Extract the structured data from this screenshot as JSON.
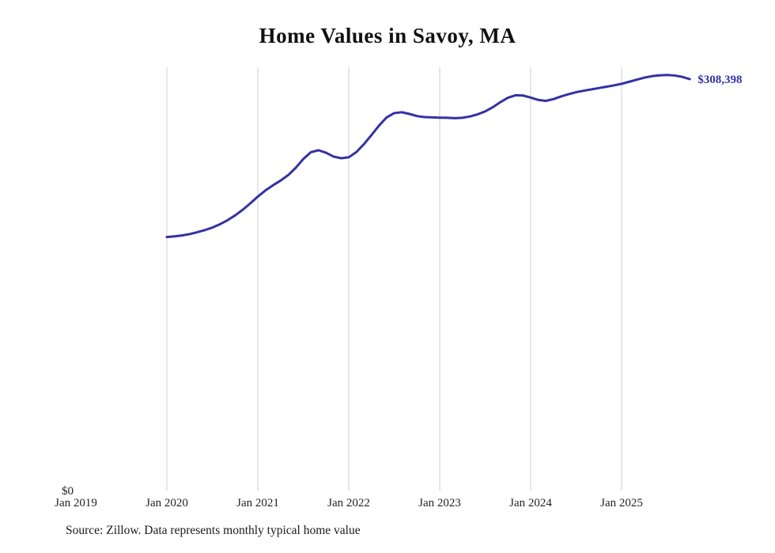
{
  "title": "Home Values in Savoy, MA",
  "source_note": "Source: Zillow. Data represents monthly typical home value",
  "end_label": "$308,398",
  "y_zero_label": "$0",
  "colors": {
    "line": "#3431a6",
    "end_label": "#3431a6",
    "gridline": "#cccccc",
    "tick_text": "#222222"
  },
  "chart_data": {
    "type": "line",
    "title": "Home Values in Savoy, MA",
    "xlabel": "",
    "ylabel": "",
    "x_axis_start": "Jan 2019",
    "series_start": "Jan 2020",
    "x_tick_labels": [
      "Jan 2019",
      "Jan 2020",
      "Jan 2021",
      "Jan 2022",
      "Jan 2023",
      "Jan 2024",
      "Jan 2025"
    ],
    "y_tick_labels": [
      "$0"
    ],
    "ylim": [
      0,
      317000
    ],
    "grid": "vertical-yearly",
    "final_value": 308398,
    "final_value_label": "$308,398",
    "series": [
      {
        "name": "Monthly typical home value",
        "start_month": "2020-01",
        "values": [
          190000,
          190500,
          191200,
          192200,
          193600,
          195200,
          197100,
          199600,
          202600,
          206200,
          210400,
          215200,
          220300,
          224900,
          228800,
          232300,
          236400,
          241900,
          248500,
          253600,
          255100,
          253200,
          250300,
          249100,
          249800,
          253700,
          259600,
          266500,
          273600,
          279700,
          282900,
          283600,
          282300,
          280700,
          279900,
          279700,
          279500,
          279400,
          279100,
          279400,
          280400,
          282000,
          284200,
          287300,
          291100,
          294400,
          296300,
          296100,
          294600,
          292800,
          292100,
          293400,
          295400,
          297100,
          298600,
          299700,
          300700,
          301700,
          302700,
          303700,
          304900,
          306400,
          308000,
          309500,
          310600,
          311200,
          311500,
          311100,
          310100,
          308398
        ]
      }
    ]
  }
}
